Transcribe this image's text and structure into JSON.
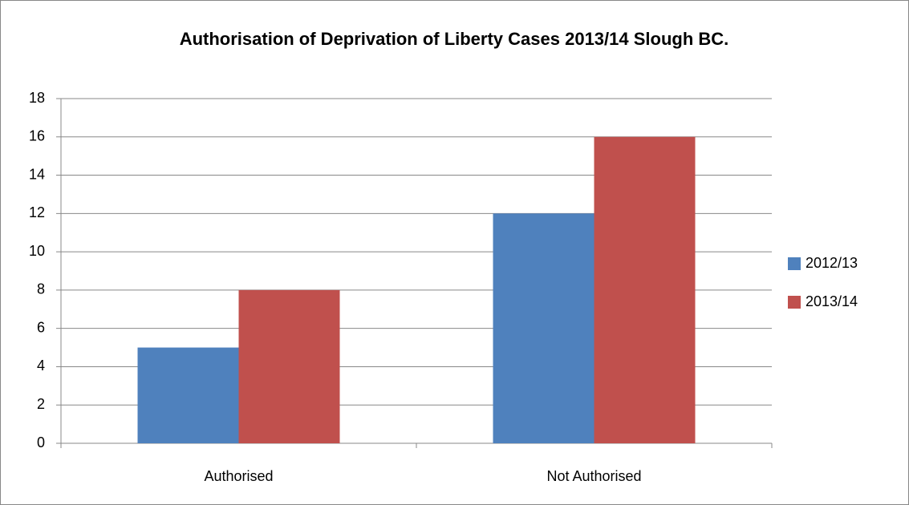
{
  "chart_data": {
    "type": "bar",
    "title": "Authorisation of Deprivation of Liberty Cases 2013/14 Slough BC.",
    "categories": [
      "Authorised",
      "Not Authorised"
    ],
    "series": [
      {
        "name": "2012/13",
        "color": "#4f81bd",
        "values": [
          5,
          12
        ]
      },
      {
        "name": "2013/14",
        "color": "#c0504d",
        "values": [
          8,
          16
        ]
      }
    ],
    "ylim": [
      0,
      18
    ],
    "yticks": [
      0,
      2,
      4,
      6,
      8,
      10,
      12,
      14,
      16,
      18
    ],
    "grid": true,
    "legend": "right"
  }
}
